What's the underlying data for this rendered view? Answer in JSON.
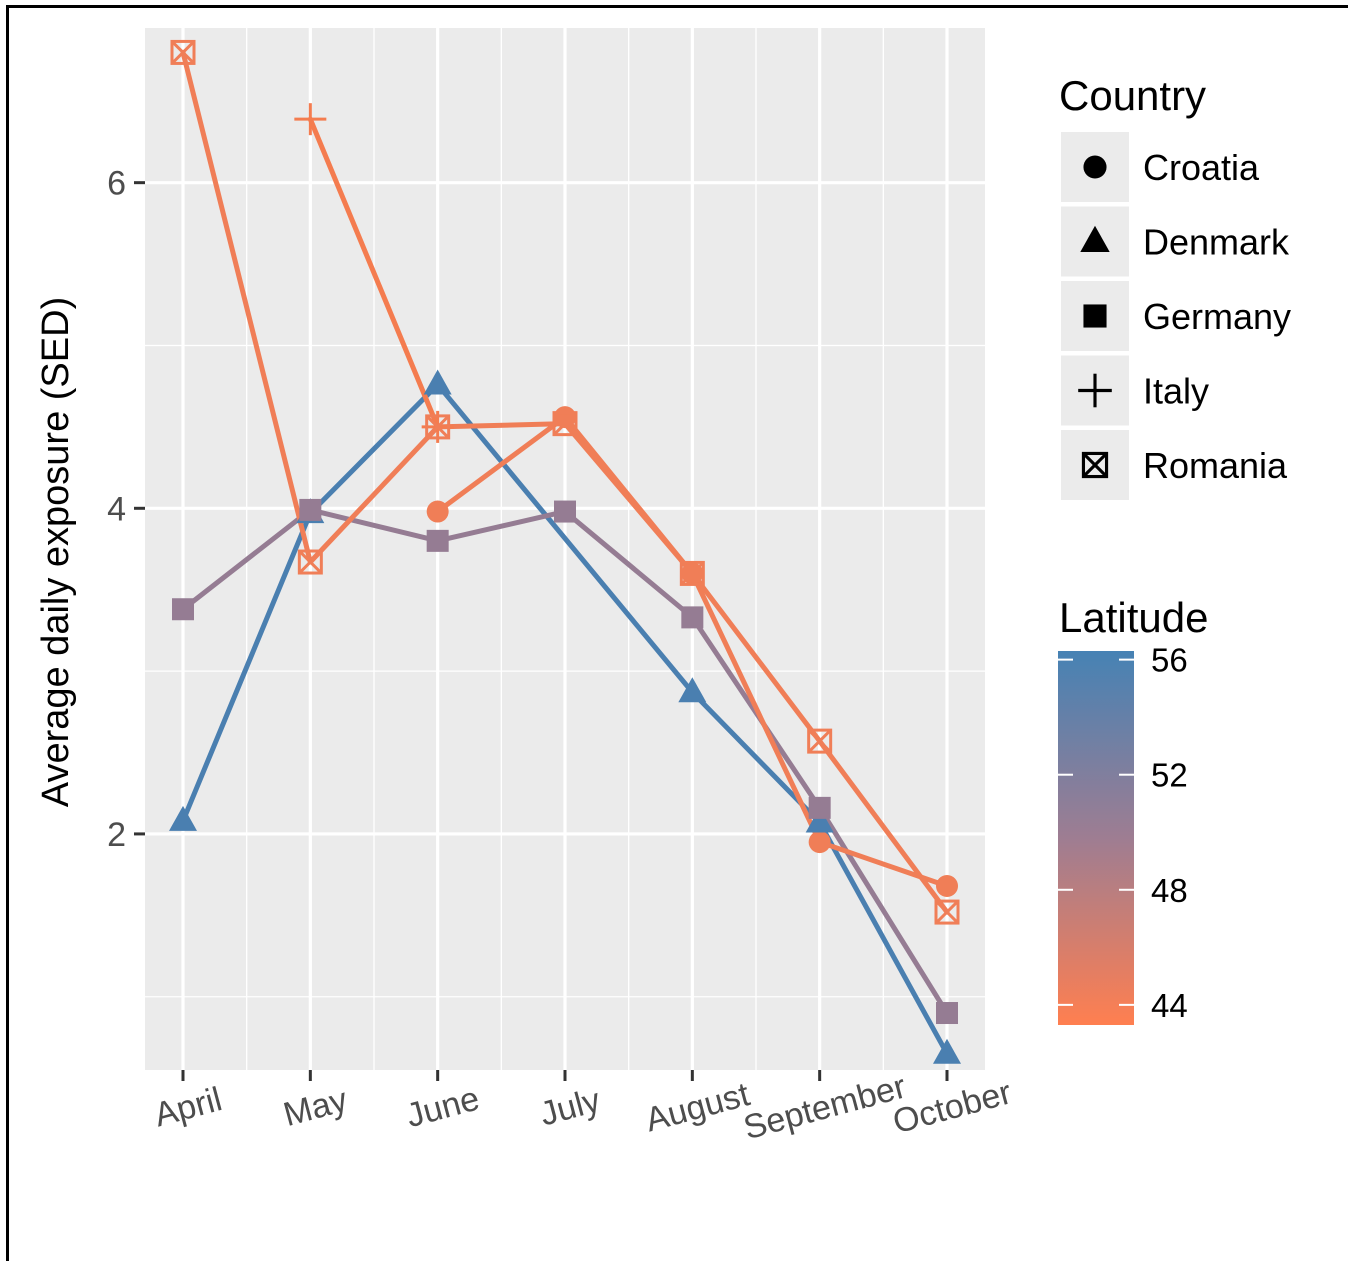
{
  "chart_data": {
    "type": "line",
    "ylabel": "Average daily exposure (SED)",
    "xlabel": "",
    "categories": [
      "April",
      "May",
      "June",
      "July",
      "August",
      "September",
      "October"
    ],
    "ylim": [
      0.55,
      6.95
    ],
    "yticks": [
      2,
      4,
      6
    ],
    "grid": true,
    "series": [
      {
        "name": "Croatia",
        "shape": "circle",
        "latitude": 45.5,
        "color": "#f07e57",
        "values": [
          null,
          null,
          3.98,
          4.56,
          3.6,
          1.95,
          1.68
        ]
      },
      {
        "name": "Denmark",
        "shape": "triangle",
        "latitude": 56,
        "color": "#4a7fb0",
        "values": [
          2.08,
          3.97,
          4.76,
          null,
          2.87,
          2.07,
          0.65
        ]
      },
      {
        "name": "Germany",
        "shape": "square",
        "latitude": 51,
        "color": "#957c93",
        "values": [
          3.38,
          3.99,
          3.8,
          3.98,
          3.33,
          2.16,
          0.9
        ]
      },
      {
        "name": "Italy",
        "shape": "plus",
        "latitude": 43.5,
        "color": "#f47c4f",
        "values": [
          null,
          6.39,
          4.5,
          null,
          null,
          null,
          null
        ]
      },
      {
        "name": "Romania",
        "shape": "boxx",
        "latitude": 45.5,
        "color": "#f07e57",
        "values": [
          6.8,
          3.67,
          4.5,
          4.52,
          3.6,
          2.57,
          1.52
        ]
      }
    ],
    "segments": [
      {
        "series": "Denmark",
        "from": [
          0,
          2.08
        ],
        "to": [
          1,
          3.97
        ],
        "color": "#4a7fb0"
      },
      {
        "series": "Denmark",
        "from": [
          1,
          3.97
        ],
        "to": [
          2,
          4.76
        ],
        "color": "#4a7fb0"
      },
      {
        "series": "Denmark",
        "from": [
          2,
          4.76
        ],
        "to": [
          4,
          2.87
        ],
        "color": "#4a7fb0"
      },
      {
        "series": "Denmark",
        "from": [
          4,
          2.87
        ],
        "to": [
          5,
          2.07
        ],
        "color": "#4a7fb0"
      },
      {
        "series": "Denmark",
        "from": [
          5,
          2.07
        ],
        "to": [
          6,
          0.65
        ],
        "color": "#4a7fb0"
      },
      {
        "series": "Germany",
        "from": [
          0,
          3.38
        ],
        "to": [
          1,
          3.99
        ],
        "color": "#957c93"
      },
      {
        "series": "Germany",
        "from": [
          1,
          3.99
        ],
        "to": [
          2,
          3.8
        ],
        "color": "#957c93"
      },
      {
        "series": "Germany",
        "from": [
          2,
          3.8
        ],
        "to": [
          3,
          3.98
        ],
        "color": "#957c93"
      },
      {
        "series": "Germany",
        "from": [
          3,
          3.98
        ],
        "to": [
          4,
          3.33
        ],
        "color": "#957c93"
      },
      {
        "series": "Germany",
        "from": [
          4,
          3.33
        ],
        "to": [
          5,
          2.16
        ],
        "color": "#957c93"
      },
      {
        "series": "Germany",
        "from": [
          5,
          2.16
        ],
        "to": [
          6,
          0.9
        ],
        "color": "#957c93"
      },
      {
        "series": "Croatia",
        "from": [
          2,
          3.98
        ],
        "to": [
          3,
          4.56
        ],
        "color": "#f07e57"
      },
      {
        "series": "Croatia",
        "from": [
          3,
          4.56
        ],
        "to": [
          4,
          3.6
        ],
        "color": "#f07e57"
      },
      {
        "series": "Croatia",
        "from": [
          4,
          3.6
        ],
        "to": [
          5,
          1.95
        ],
        "color": "#f07e57"
      },
      {
        "series": "Croatia",
        "from": [
          5,
          1.95
        ],
        "to": [
          6,
          1.68
        ],
        "color": "#f07e57"
      },
      {
        "series": "Romania",
        "from": [
          0,
          6.8
        ],
        "to": [
          1,
          3.67
        ],
        "color": "#f07e57"
      },
      {
        "series": "Romania",
        "from": [
          1,
          3.67
        ],
        "to": [
          2,
          4.5
        ],
        "color": "#f07e57"
      },
      {
        "series": "Romania",
        "from": [
          2,
          4.5
        ],
        "to": [
          3,
          4.52
        ],
        "color": "#f07e57"
      },
      {
        "series": "Romania",
        "from": [
          3,
          4.52
        ],
        "to": [
          4,
          3.6
        ],
        "color": "#f07e57"
      },
      {
        "series": "Romania",
        "from": [
          4,
          3.6
        ],
        "to": [
          5,
          2.57
        ],
        "color": "#f07e57"
      },
      {
        "series": "Romania",
        "from": [
          5,
          2.57
        ],
        "to": [
          6,
          1.52
        ],
        "color": "#f07e57"
      },
      {
        "series": "Italy",
        "from": [
          1,
          6.39
        ],
        "to": [
          2,
          4.5
        ],
        "color": "#f47c4f"
      }
    ],
    "legend": {
      "shape_title": "Country",
      "shape_entries": [
        "Croatia",
        "Denmark",
        "Germany",
        "Italy",
        "Romania"
      ],
      "color_title": "Latitude",
      "color_breaks": [
        "56",
        "52",
        "48",
        "44"
      ],
      "color_range": [
        43.3,
        56.3
      ],
      "color_low": "#ff7f50",
      "color_high": "#4682b4",
      "placement": "right"
    },
    "panel_background": "#ebebeb"
  }
}
